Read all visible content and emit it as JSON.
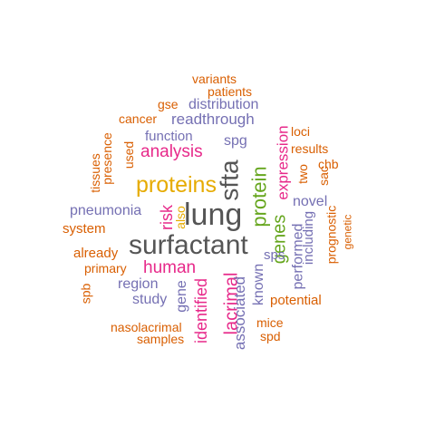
{
  "palette": {
    "orange": "#d95f02",
    "purple": "#7570b3",
    "magenta": "#e7298a",
    "green": "#66a61e",
    "gold": "#e6ab02",
    "gray": "#666666",
    "darkgray": "#555555"
  },
  "words": [
    {
      "text": "variants"
    },
    {
      "text": "patients"
    },
    {
      "text": "gse"
    },
    {
      "text": "distribution"
    },
    {
      "text": "cancer"
    },
    {
      "text": "readthrough"
    },
    {
      "text": "function"
    },
    {
      "text": "analysis"
    },
    {
      "text": "spg"
    },
    {
      "text": "loci"
    },
    {
      "text": "results"
    },
    {
      "text": "chb"
    },
    {
      "text": "sac"
    },
    {
      "text": "two"
    },
    {
      "text": "proteins"
    },
    {
      "text": "sfta"
    },
    {
      "text": "protein"
    },
    {
      "text": "expression"
    },
    {
      "text": "genes"
    },
    {
      "text": "lung"
    },
    {
      "text": "pneumonia"
    },
    {
      "text": "risk"
    },
    {
      "text": "also"
    },
    {
      "text": "system"
    },
    {
      "text": "surfactant"
    },
    {
      "text": "novel"
    },
    {
      "text": "including"
    },
    {
      "text": "prognostic"
    },
    {
      "text": "genetic"
    },
    {
      "text": "performed"
    },
    {
      "text": "already"
    },
    {
      "text": "primary"
    },
    {
      "text": "human"
    },
    {
      "text": "sps"
    },
    {
      "text": "known"
    },
    {
      "text": "spb"
    },
    {
      "text": "region"
    },
    {
      "text": "study"
    },
    {
      "text": "gene"
    },
    {
      "text": "identified"
    },
    {
      "text": "lacrimal"
    },
    {
      "text": "associated"
    },
    {
      "text": "potential"
    },
    {
      "text": "nasolacrimal"
    },
    {
      "text": "mice"
    },
    {
      "text": "samples"
    },
    {
      "text": "spd"
    },
    {
      "text": "tissues"
    },
    {
      "text": "presence"
    },
    {
      "text": "used"
    }
  ]
}
